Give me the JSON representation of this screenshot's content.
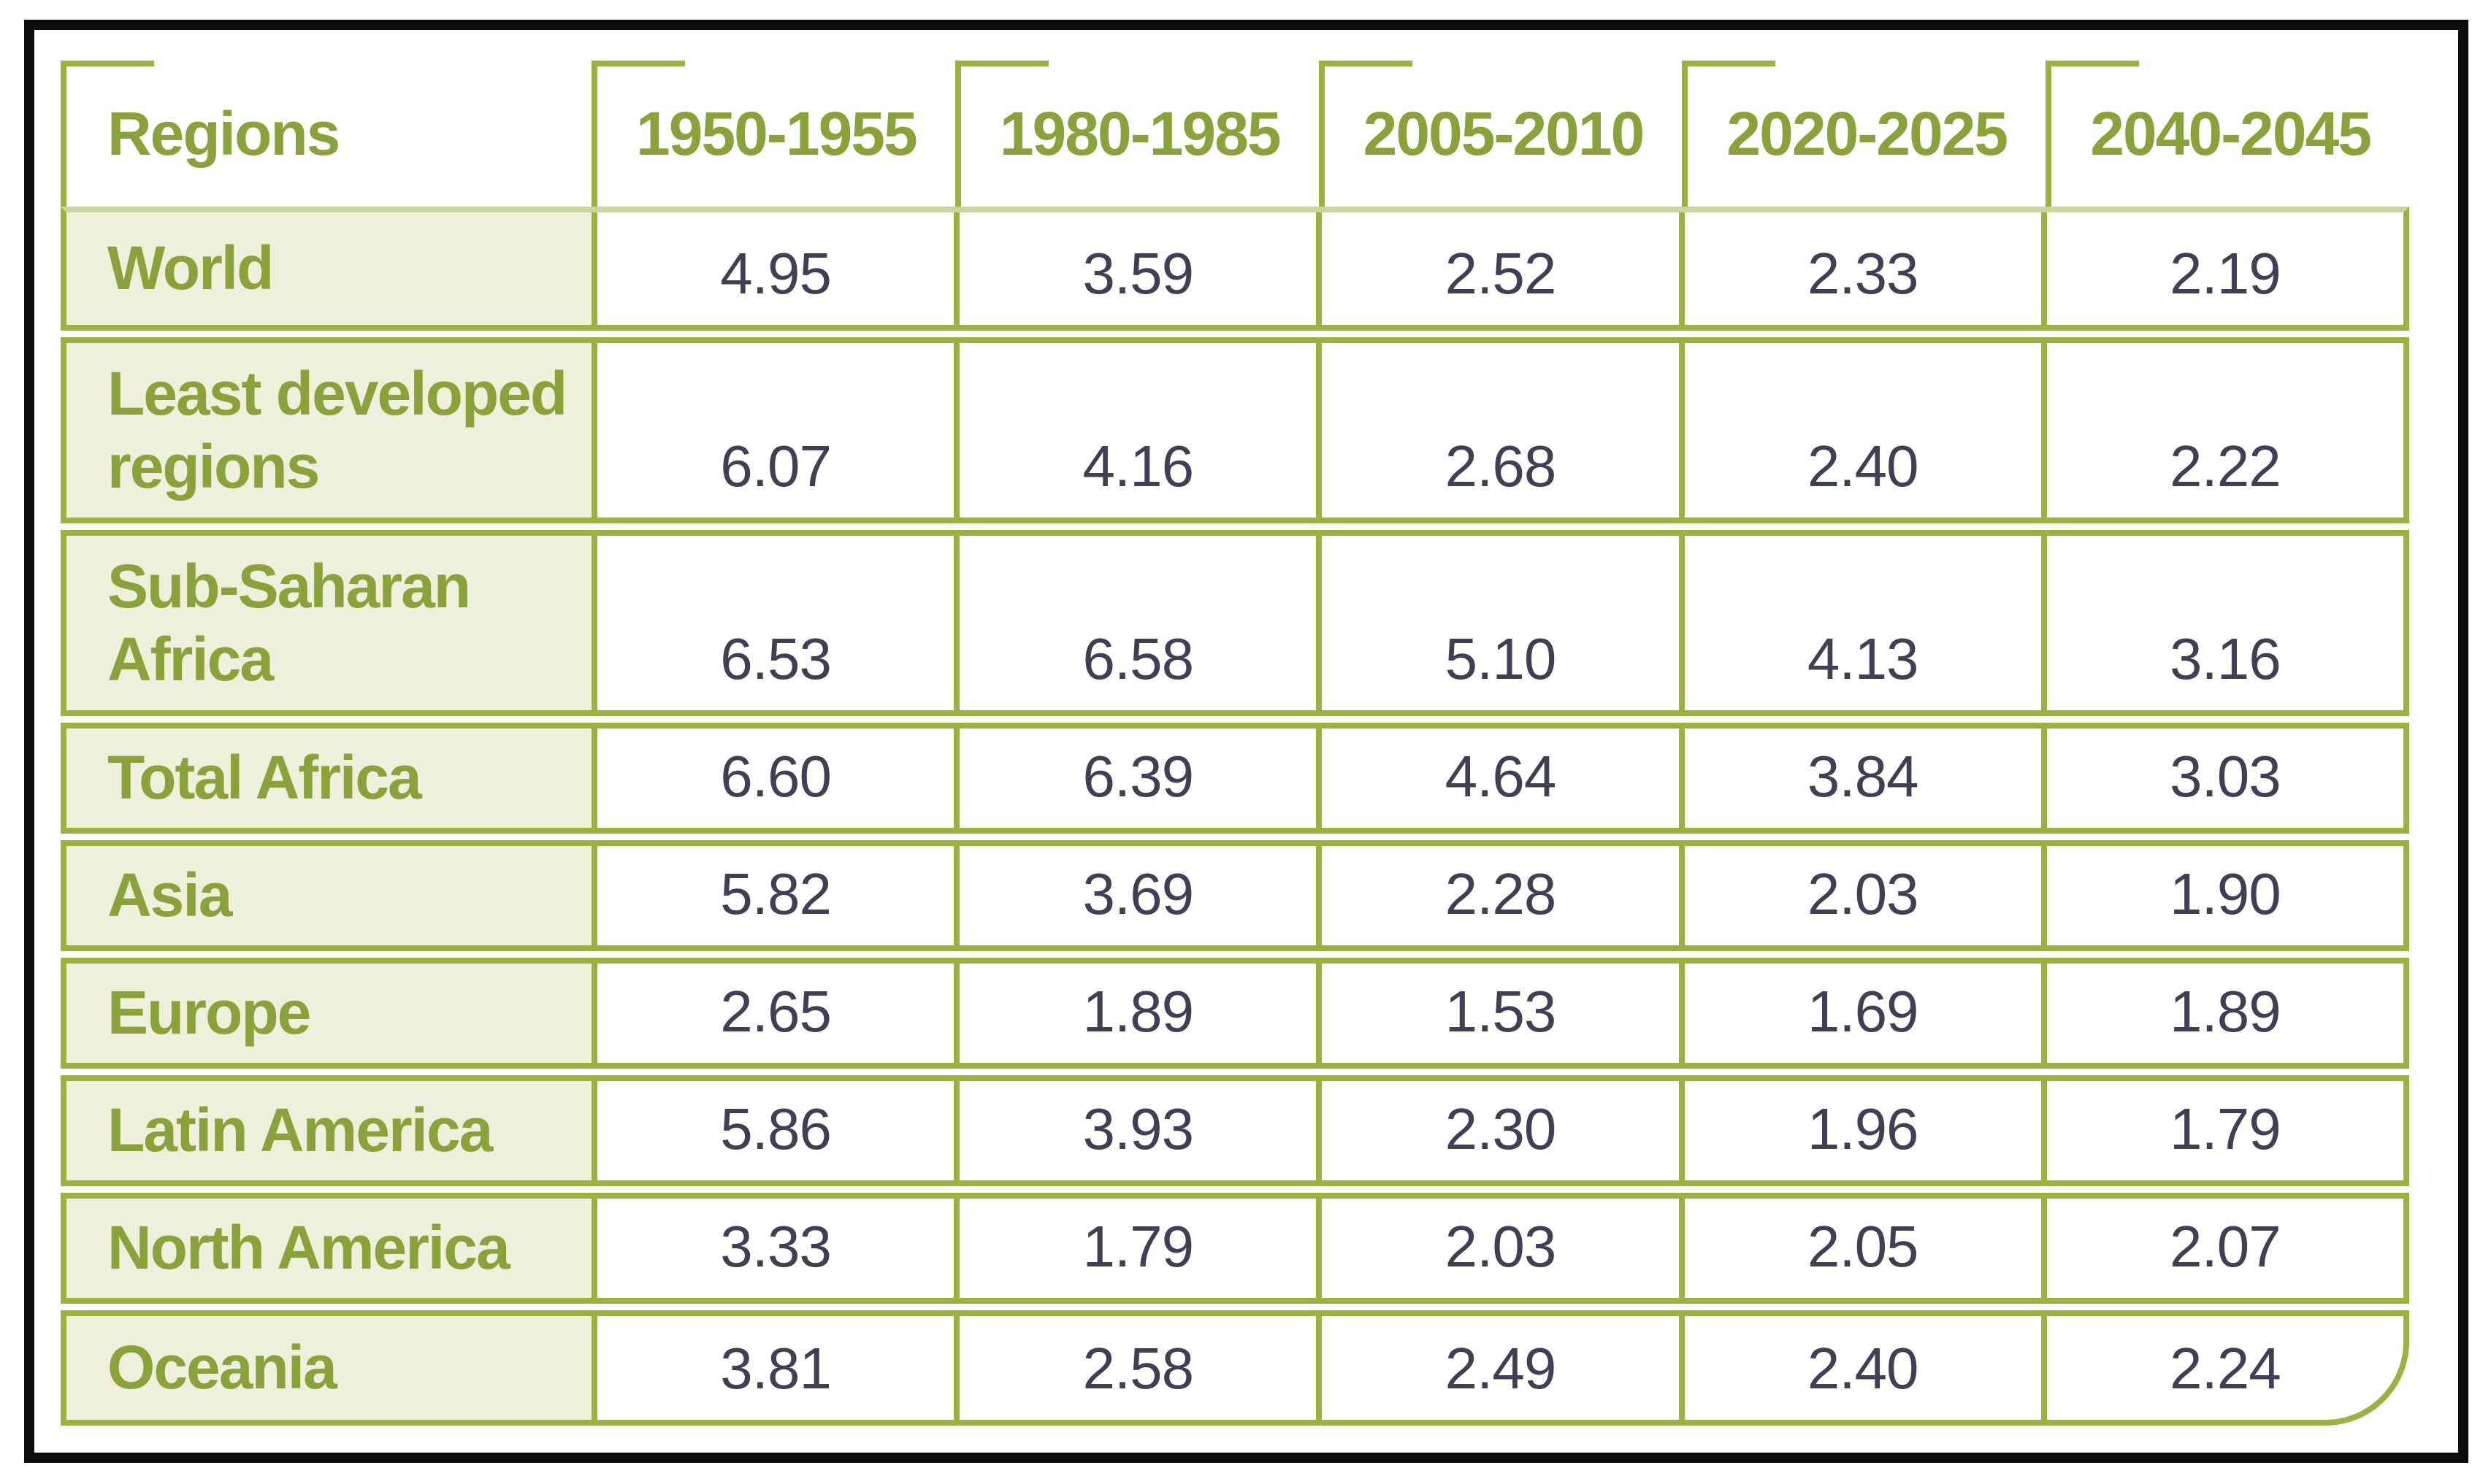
{
  "colors": {
    "accent_green": "#9CB23F",
    "text_green": "#8BA13A",
    "light_green": "#C9D79C",
    "row_label_bg": "#EEF0DC",
    "value_text": "#3F4055",
    "frame_black": "#0C0C0C"
  },
  "table": {
    "columns": [
      "Regions",
      "1950-1955",
      "1980-1985",
      "2005-2010",
      "2020-2025",
      "2040-2045"
    ],
    "rows": [
      {
        "region": "World",
        "values": [
          "4.95",
          "3.59",
          "2.52",
          "2.33",
          "2.19"
        ]
      },
      {
        "region": "Least developed\nregions",
        "values": [
          "6.07",
          "4.16",
          "2.68",
          "2.40",
          "2.22"
        ]
      },
      {
        "region": "Sub-Saharan\nAfrica",
        "values": [
          "6.53",
          "6.58",
          "5.10",
          "4.13",
          "3.16"
        ]
      },
      {
        "region": "Total Africa",
        "values": [
          "6.60",
          "6.39",
          "4.64",
          "3.84",
          "3.03"
        ]
      },
      {
        "region": "Asia",
        "values": [
          "5.82",
          "3.69",
          "2.28",
          "2.03",
          "1.90"
        ]
      },
      {
        "region": "Europe",
        "values": [
          "2.65",
          "1.89",
          "1.53",
          "1.69",
          "1.89"
        ]
      },
      {
        "region": "Latin America",
        "values": [
          "5.86",
          "3.93",
          "2.30",
          "1.96",
          "1.79"
        ]
      },
      {
        "region": "North America",
        "values": [
          "3.33",
          "1.79",
          "2.03",
          "2.05",
          "2.07"
        ]
      },
      {
        "region": "Oceania",
        "values": [
          "3.81",
          "2.58",
          "2.49",
          "2.40",
          "2.24"
        ]
      }
    ]
  }
}
